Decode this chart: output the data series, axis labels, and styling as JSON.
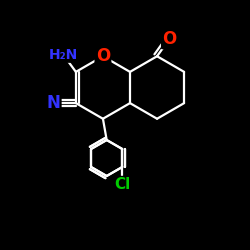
{
  "bg_color": "#000000",
  "bond_color": "#ffffff",
  "bond_width": 1.6,
  "atom_colors": {
    "N": "#3333ff",
    "O": "#ff2200",
    "Cl": "#00cc00",
    "C": "#ffffff"
  },
  "font_size_atom": 11,
  "fig_size": [
    2.5,
    2.5
  ],
  "dpi": 100
}
